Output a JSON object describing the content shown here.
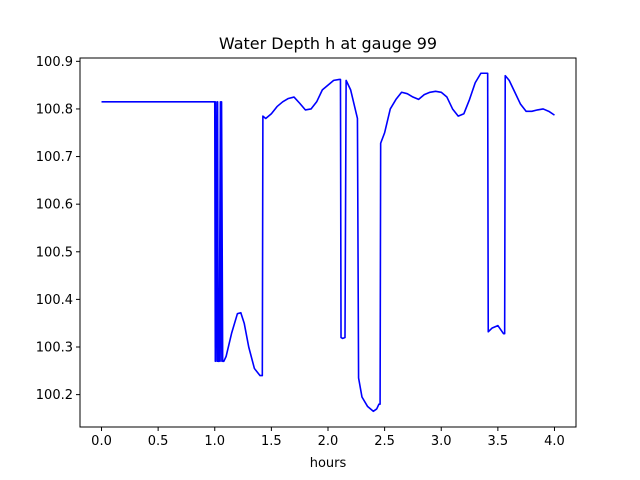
{
  "chart_data": {
    "type": "line",
    "title": "Water Depth h at gauge 99",
    "xlabel": "hours",
    "ylabel": "",
    "xlim": [
      -0.19,
      4.19
    ],
    "ylim": [
      100.132,
      100.907
    ],
    "grid": false,
    "xticks": [
      {
        "value": 0.0,
        "label": "0.0"
      },
      {
        "value": 0.5,
        "label": "0.5"
      },
      {
        "value": 1.0,
        "label": "1.0"
      },
      {
        "value": 1.5,
        "label": "1.5"
      },
      {
        "value": 2.0,
        "label": "2.0"
      },
      {
        "value": 2.5,
        "label": "2.5"
      },
      {
        "value": 3.0,
        "label": "3.0"
      },
      {
        "value": 3.5,
        "label": "3.5"
      },
      {
        "value": 4.0,
        "label": "4.0"
      }
    ],
    "yticks": [
      {
        "value": 100.2,
        "label": "100.2"
      },
      {
        "value": 100.3,
        "label": "100.3"
      },
      {
        "value": 100.4,
        "label": "100.4"
      },
      {
        "value": 100.5,
        "label": "100.5"
      },
      {
        "value": 100.6,
        "label": "100.6"
      },
      {
        "value": 100.7,
        "label": "100.7"
      },
      {
        "value": 100.8,
        "label": "100.8"
      },
      {
        "value": 100.9,
        "label": "100.9"
      }
    ],
    "series": [
      {
        "color": "#0000ff",
        "x": [
          0.0,
          0.5,
          0.99,
          1.0,
          1.005,
          1.01,
          1.02,
          1.025,
          1.03,
          1.04,
          1.05,
          1.055,
          1.06,
          1.07,
          1.08,
          1.1,
          1.15,
          1.2,
          1.23,
          1.26,
          1.3,
          1.35,
          1.4,
          1.42,
          1.425,
          1.45,
          1.5,
          1.55,
          1.6,
          1.65,
          1.7,
          1.75,
          1.8,
          1.85,
          1.9,
          1.95,
          2.0,
          2.05,
          2.1,
          2.11,
          2.115,
          2.13,
          2.15,
          2.16,
          2.2,
          2.25,
          2.26,
          2.27,
          2.3,
          2.35,
          2.4,
          2.43,
          2.45,
          2.46,
          2.465,
          2.5,
          2.55,
          2.6,
          2.65,
          2.7,
          2.75,
          2.8,
          2.85,
          2.9,
          2.95,
          3.0,
          3.05,
          3.1,
          3.15,
          3.2,
          3.25,
          3.3,
          3.35,
          3.4,
          3.41,
          3.415,
          3.45,
          3.5,
          3.55,
          3.56,
          3.565,
          3.6,
          3.65,
          3.7,
          3.75,
          3.8,
          3.85,
          3.9,
          3.95,
          4.0
        ],
        "y": [
          100.815,
          100.815,
          100.815,
          100.815,
          100.27,
          100.815,
          100.27,
          100.815,
          100.27,
          100.27,
          100.815,
          100.27,
          100.815,
          100.27,
          100.27,
          100.28,
          100.33,
          100.37,
          100.372,
          100.35,
          100.3,
          100.255,
          100.24,
          100.24,
          100.785,
          100.78,
          100.79,
          100.805,
          100.815,
          100.822,
          100.825,
          100.812,
          100.798,
          100.8,
          100.815,
          100.84,
          100.85,
          100.86,
          100.862,
          100.862,
          100.32,
          100.318,
          100.32,
          100.86,
          100.84,
          100.79,
          100.78,
          100.235,
          100.195,
          100.175,
          100.165,
          100.17,
          100.18,
          100.18,
          100.728,
          100.75,
          100.8,
          100.82,
          100.835,
          100.832,
          100.825,
          100.82,
          100.83,
          100.835,
          100.837,
          100.835,
          100.825,
          100.8,
          100.785,
          100.79,
          100.82,
          100.855,
          100.875,
          100.875,
          100.875,
          100.332,
          100.34,
          100.345,
          100.328,
          100.328,
          100.87,
          100.86,
          100.835,
          100.81,
          100.795,
          100.795,
          100.798,
          100.8,
          100.795,
          100.787
        ]
      }
    ]
  }
}
